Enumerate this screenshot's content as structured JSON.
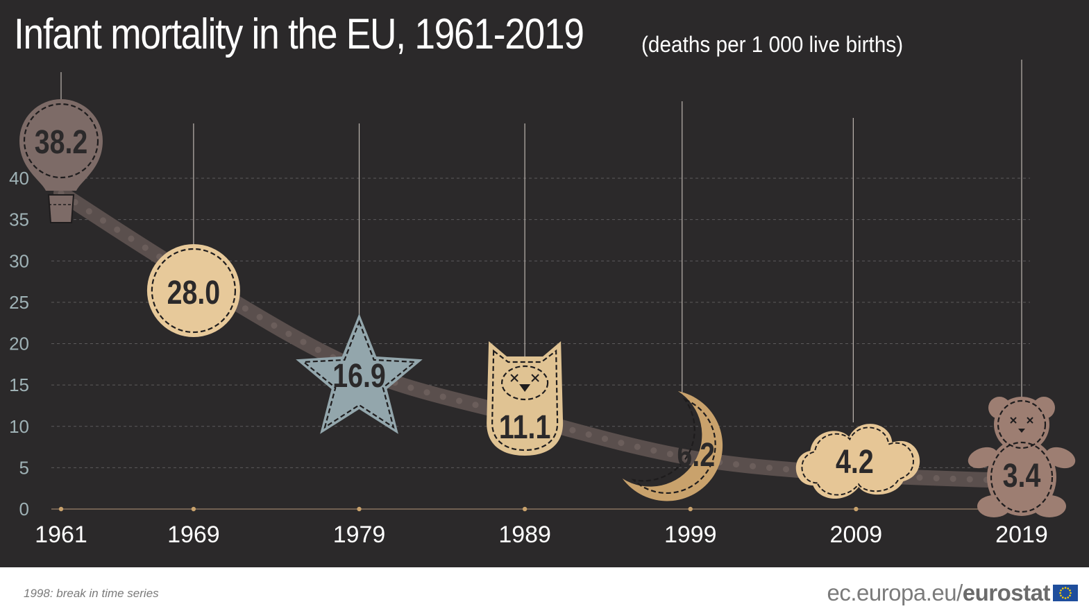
{
  "header": {
    "title": "Infant mortality in the EU, 1961-2019",
    "subtitle": "(deaths per 1 000 live births)"
  },
  "footer": {
    "note": "1998: break in time series",
    "source_url": "ec.europa.eu/",
    "source_brand": "eurostat"
  },
  "colors": {
    "background": "#2b292a",
    "trend": "#5a4f4d",
    "balloon": "#7d6b67",
    "circle": "#e7c99a",
    "star": "#93a6ac",
    "owl": "#e0c393",
    "moon": "#c9a26c",
    "cloud": "#e6c696",
    "bear": "#9d7e72",
    "eu_blue": "#1f4e9c",
    "eu_star": "#ffd200"
  },
  "chart_data": {
    "type": "line",
    "x": [
      1961,
      1969,
      1979,
      1989,
      1999,
      2009,
      2019
    ],
    "values": [
      38.2,
      28.0,
      16.9,
      11.1,
      6.2,
      4.2,
      3.4
    ],
    "data_labels": [
      "38.2",
      "28.0",
      "16.9",
      "11.1",
      "6.2",
      "4.2",
      "3.4"
    ],
    "marker_icons": [
      "balloon-icon",
      "circle-badge-icon",
      "star-icon",
      "owl-icon",
      "moon-icon",
      "cloud-icon",
      "teddy-bear-icon"
    ],
    "xticks": [
      "1961",
      "1969",
      "1979",
      "1989",
      "1999",
      "2009",
      "2019"
    ],
    "yticks": [
      0,
      5,
      10,
      15,
      20,
      25,
      30,
      35,
      40
    ],
    "ylim": [
      0,
      40
    ],
    "xlim": [
      1961,
      2019
    ],
    "grid": "horizontal-dashed",
    "xlabel": "",
    "ylabel": ""
  }
}
